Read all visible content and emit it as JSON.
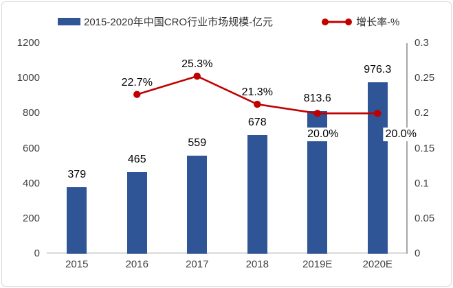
{
  "legend": {
    "bar_series_label": "2015-2020年中国CRO行业市场规模-亿元",
    "line_series_label": "增长率-%"
  },
  "chart_data": {
    "type": "combo-bar-line",
    "categories": [
      "2015",
      "2016",
      "2017",
      "2018",
      "2019E",
      "2020E"
    ],
    "series": [
      {
        "name": "2015-2020年中国CRO行业市场规模-亿元",
        "type": "bar",
        "axis": "left",
        "color": "#2F5597",
        "values": [
          379,
          465,
          559,
          678,
          813.6,
          976.3
        ],
        "labels": [
          "379",
          "465",
          "559",
          "678",
          "813.6",
          "976.3"
        ]
      },
      {
        "name": "增长率-%",
        "type": "line",
        "axis": "right",
        "color": "#C00000",
        "values": [
          null,
          0.227,
          0.253,
          0.213,
          0.2,
          0.2
        ],
        "labels": [
          null,
          "22.7%",
          "25.3%",
          "21.3%",
          "20.0%",
          "20.0%"
        ],
        "label_placement": [
          null,
          "above",
          "above",
          "above",
          "below",
          "below-right"
        ]
      }
    ],
    "left_axis": {
      "min": 0,
      "max": 1200,
      "ticks": [
        0,
        200,
        400,
        600,
        800,
        1000,
        1200
      ]
    },
    "right_axis": {
      "min": 0,
      "max": 0.3,
      "ticks": [
        0,
        0.05,
        0.1,
        0.15,
        0.2,
        0.25,
        0.3
      ],
      "tick_labels": [
        "0",
        "0.05",
        "0.1",
        "0.15",
        "0.2",
        "0.25",
        "0.3"
      ]
    },
    "grid": false,
    "legend_position": "top"
  }
}
